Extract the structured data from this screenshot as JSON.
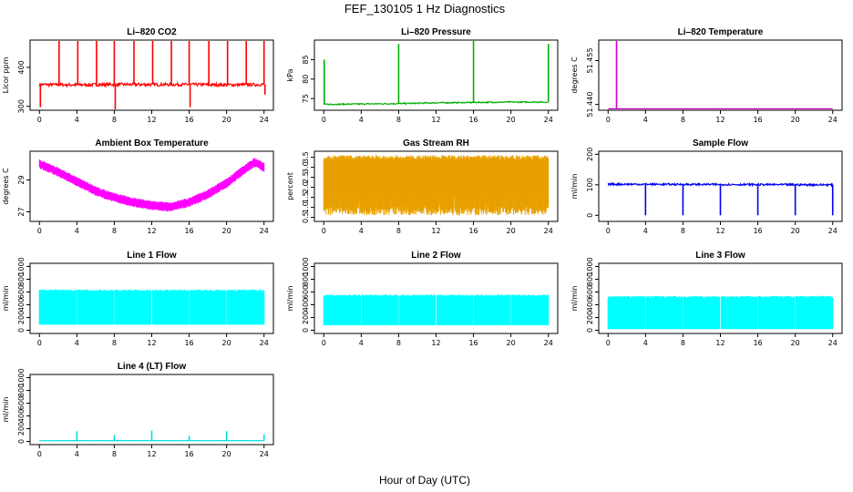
{
  "title": "FEF_130105  1 Hz Diagnostics",
  "xlabel": "Hour of Day (UTC)",
  "chart_data": [
    {
      "type": "line",
      "title": "Li–820 CO2",
      "ylabel": "Licor ppm",
      "color": "#ff0000",
      "xlim": [
        -1,
        25
      ],
      "ylim": [
        290,
        470
      ],
      "xticks": [
        0,
        4,
        8,
        12,
        16,
        20,
        24
      ],
      "yticks": [
        300,
        400
      ],
      "render": "line_spikes",
      "baseline": 356,
      "noise": 4,
      "events": [
        [
          0.1,
          298
        ],
        [
          2.1,
          470
        ],
        [
          4.1,
          470
        ],
        [
          6.1,
          470
        ],
        [
          8.0,
          470
        ],
        [
          8.1,
          292
        ],
        [
          10.1,
          470
        ],
        [
          12.1,
          470
        ],
        [
          14.1,
          470
        ],
        [
          16.0,
          470
        ],
        [
          16.1,
          298
        ],
        [
          18.1,
          470
        ],
        [
          20.1,
          470
        ],
        [
          22.1,
          470
        ],
        [
          24.0,
          470
        ],
        [
          24.1,
          330
        ]
      ],
      "series": [
        {
          "x": [
            0,
            4,
            8,
            12,
            16,
            20,
            24
          ],
          "values": [
            356,
            355,
            356,
            356,
            356,
            355,
            356
          ]
        }
      ]
    },
    {
      "type": "line",
      "title": "Li–820 Pressure",
      "ylabel": "kPa",
      "color": "#00b000",
      "xlim": [
        -1,
        25
      ],
      "ylim": [
        72,
        90
      ],
      "xticks": [
        0,
        4,
        8,
        12,
        16,
        20,
        24
      ],
      "yticks": [
        75,
        80,
        85
      ],
      "render": "line_spikes",
      "baseline": 73.8,
      "noise": 0.15,
      "events": [
        [
          0.05,
          85
        ],
        [
          8.0,
          89
        ],
        [
          16.0,
          90
        ],
        [
          24.0,
          89
        ]
      ],
      "series": [
        {
          "x": [
            0,
            4,
            8,
            12,
            16,
            20,
            24
          ],
          "values": [
            73.5,
            73.6,
            73.7,
            73.9,
            74.0,
            74.1,
            74.1
          ]
        }
      ]
    },
    {
      "type": "line",
      "title": "Li–820 Temperature",
      "ylabel": "degrees C",
      "color": "#cc00cc",
      "xlim": [
        -1,
        25
      ],
      "ylim": [
        51.438,
        51.462
      ],
      "xticks": [
        0,
        4,
        8,
        12,
        16,
        20,
        24
      ],
      "yticks": [
        51.44,
        51.455
      ],
      "ytick_labels": [
        "51.440",
        "51.455"
      ],
      "render": "flat_spike",
      "baseline": 51.4385,
      "events": [
        [
          0.9,
          51.462
        ]
      ],
      "series": [
        {
          "x": [
            0,
            24
          ],
          "values": [
            51.4385,
            51.4385
          ]
        }
      ]
    },
    {
      "type": "line",
      "title": "Ambient Box Temperature",
      "ylabel": "degrees C",
      "color": "#ff00ff",
      "xlim": [
        -1,
        25
      ],
      "ylim": [
        26.4,
        30.8
      ],
      "xticks": [
        0,
        4,
        8,
        12,
        16,
        20,
        24
      ],
      "yticks": [
        27,
        29
      ],
      "render": "band",
      "halfwidth": 0.3,
      "series": [
        {
          "x": [
            0,
            2,
            4,
            6,
            8,
            10,
            12,
            14,
            16,
            18,
            20,
            22,
            23,
            24
          ],
          "values": [
            30.0,
            29.5,
            28.9,
            28.3,
            27.9,
            27.6,
            27.4,
            27.3,
            27.6,
            28.1,
            28.8,
            29.7,
            30.1,
            29.8
          ]
        }
      ]
    },
    {
      "type": "line",
      "title": "Gas Stream RH",
      "ylabel": "percent",
      "color": "#e8a000",
      "xlim": [
        -1,
        25
      ],
      "ylim": [
        0.3,
        3.8
      ],
      "xticks": [
        0,
        4,
        8,
        12,
        16,
        20,
        24
      ],
      "yticks": [
        0.5,
        1.0,
        1.5,
        2.0,
        2.5,
        3.0,
        3.5
      ],
      "ytick_labels": [
        "0.5",
        "1.0",
        "1.5",
        "2.0",
        "2.5",
        "3.0",
        "3.5"
      ],
      "render": "dense",
      "series": [
        {
          "x": [
            0,
            24
          ],
          "range": [
            0.6,
            3.6
          ]
        }
      ]
    },
    {
      "type": "line",
      "title": "Sample Flow",
      "ylabel": "ml/min",
      "color": "#0000ee",
      "xlim": [
        -1,
        25
      ],
      "ylim": [
        -20,
        210
      ],
      "xticks": [
        0,
        4,
        8,
        12,
        16,
        20,
        24
      ],
      "yticks": [
        0,
        100,
        200
      ],
      "render": "line_spikes",
      "baseline": 100,
      "noise": 3,
      "events": [
        [
          4.0,
          0
        ],
        [
          8.0,
          0
        ],
        [
          12.0,
          0
        ],
        [
          16.0,
          0
        ],
        [
          20.0,
          0
        ],
        [
          24.0,
          0
        ]
      ],
      "series": [
        {
          "x": [
            0,
            24
          ],
          "values": [
            102,
            100
          ]
        }
      ]
    },
    {
      "type": "line",
      "title": "Line 1 Flow",
      "ylabel": "ml/min",
      "color": "#00ffff",
      "xlim": [
        -1,
        25
      ],
      "ylim": [
        -50,
        1050
      ],
      "xticks": [
        0,
        4,
        8,
        12,
        16,
        20,
        24
      ],
      "yticks": [
        0,
        200,
        400,
        600,
        800,
        1000
      ],
      "render": "block",
      "series": [
        {
          "x": [
            0,
            24
          ],
          "range": [
            90,
            640
          ]
        }
      ],
      "gaps": [
        4,
        8,
        12,
        16,
        20
      ]
    },
    {
      "type": "line",
      "title": "Line 2 Flow",
      "ylabel": "ml/min",
      "color": "#00ffff",
      "xlim": [
        -1,
        25
      ],
      "ylim": [
        -50,
        1050
      ],
      "xticks": [
        0,
        4,
        8,
        12,
        16,
        20,
        24
      ],
      "yticks": [
        0,
        200,
        400,
        600,
        800,
        1000
      ],
      "render": "block",
      "series": [
        {
          "x": [
            0,
            24
          ],
          "range": [
            80,
            560
          ]
        }
      ],
      "gaps": [
        4,
        8,
        12,
        16,
        20
      ]
    },
    {
      "type": "line",
      "title": "Line 3 Flow",
      "ylabel": "ml/min",
      "color": "#00ffff",
      "xlim": [
        -1,
        25
      ],
      "ylim": [
        -50,
        1050
      ],
      "xticks": [
        0,
        4,
        8,
        12,
        16,
        20,
        24
      ],
      "yticks": [
        0,
        200,
        400,
        600,
        800,
        1000
      ],
      "render": "block",
      "series": [
        {
          "x": [
            0,
            24
          ],
          "range": [
            20,
            540
          ]
        }
      ],
      "gaps": [
        4,
        8,
        12,
        16,
        20
      ]
    },
    {
      "type": "line",
      "title": "Line 4 (LT) Flow",
      "ylabel": "ml/min",
      "color": "#00e0e0",
      "xlim": [
        -1,
        25
      ],
      "ylim": [
        -50,
        1050
      ],
      "xticks": [
        0,
        4,
        8,
        12,
        16,
        20,
        24
      ],
      "yticks": [
        0,
        200,
        400,
        600,
        800,
        1000
      ],
      "render": "line_spikes",
      "baseline": 12,
      "noise": 2,
      "events": [
        [
          4.0,
          160
        ],
        [
          8.0,
          100
        ],
        [
          12.0,
          170
        ],
        [
          16.0,
          90
        ],
        [
          20.0,
          160
        ],
        [
          24.0,
          110
        ]
      ],
      "series": [
        {
          "x": [
            0,
            24
          ],
          "values": [
            12,
            12
          ]
        }
      ]
    }
  ]
}
